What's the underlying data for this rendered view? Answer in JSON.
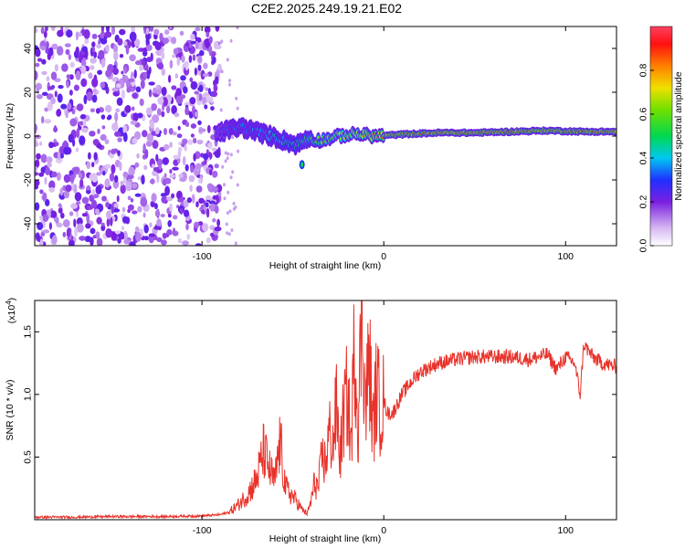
{
  "title": "C2E2.2025.249.19.21.E02",
  "colorbar": {
    "label": "Normalized spectral amplitude",
    "ticks": [
      "0.0",
      "0.2",
      "0.4",
      "0.6",
      "0.8"
    ],
    "tick_values": [
      0.0,
      0.2,
      0.4,
      0.6,
      0.8
    ],
    "range": [
      0,
      1
    ]
  },
  "chart_data": [
    {
      "type": "heatmap",
      "name": "spectrogram",
      "xlabel": "Height of straight line (km)",
      "ylabel": "Frequency (Hz)",
      "xlim": [
        -192,
        128
      ],
      "ylim": [
        -50,
        50
      ],
      "x_ticks": [
        -100,
        0,
        100
      ],
      "x_tick_labels": [
        "-100",
        "0",
        "100"
      ],
      "y_ticks": [
        -40,
        -20,
        0,
        20,
        40
      ],
      "y_tick_labels": [
        "-40",
        "-20",
        "0",
        "20",
        "40"
      ],
      "noise_region_x": [
        -192,
        -90
      ],
      "signal_track": {
        "x": [
          -92,
          -85,
          -78,
          -70,
          -62,
          -55,
          -48,
          -42,
          -35,
          -25,
          -15,
          -5,
          5,
          15,
          30,
          50,
          70,
          90,
          110,
          128
        ],
        "freq": [
          1,
          3,
          4,
          2,
          0,
          -2,
          -4,
          -1,
          -2,
          0,
          1,
          0,
          0.5,
          1,
          1.5,
          1.5,
          2,
          2.5,
          2,
          2
        ],
        "amplitude": [
          0.3,
          0.35,
          0.4,
          0.4,
          0.45,
          0.5,
          0.55,
          0.6,
          0.65,
          0.7,
          0.8,
          0.85,
          0.9,
          0.9,
          0.95,
          0.95,
          0.95,
          0.9,
          0.95,
          0.95
        ]
      }
    },
    {
      "type": "line",
      "name": "snr",
      "xlabel": "Height of straight line (km)",
      "ylabel": "SNR (10 * v/v)",
      "y_scale_note": "(x10",
      "y_scale_exp": "4",
      "xlim": [
        -192,
        128
      ],
      "ylim": [
        0,
        1.75
      ],
      "x_ticks": [
        -100,
        0,
        100
      ],
      "x_tick_labels": [
        "-100",
        "0",
        "100"
      ],
      "y_ticks": [
        0.5,
        1.0,
        1.5
      ],
      "y_tick_labels": [
        "0.5",
        "1.0",
        "1.5"
      ],
      "color": "#e8322a",
      "series": [
        {
          "name": "SNR",
          "x": [
            -192,
            -170,
            -150,
            -120,
            -100,
            -90,
            -85,
            -80,
            -75,
            -70,
            -66,
            -63,
            -60,
            -57,
            -54,
            -51,
            -48,
            -45,
            -42,
            -40,
            -38,
            -36,
            -34,
            -32,
            -30,
            -28,
            -26,
            -24,
            -22,
            -20,
            -18,
            -16,
            -14,
            -12,
            -10,
            -8,
            -6,
            -4,
            -2,
            0,
            2,
            5,
            10,
            15,
            20,
            30,
            40,
            50,
            60,
            70,
            80,
            90,
            95,
            100,
            105,
            108,
            110,
            115,
            120,
            128
          ],
          "values": [
            0.02,
            0.02,
            0.025,
            0.025,
            0.03,
            0.04,
            0.06,
            0.12,
            0.2,
            0.32,
            0.55,
            0.4,
            0.3,
            0.62,
            0.25,
            0.2,
            0.15,
            0.08,
            0.05,
            0.15,
            0.3,
            0.25,
            0.5,
            0.45,
            0.7,
            0.6,
            0.9,
            0.5,
            0.85,
            1.0,
            0.6,
            1.45,
            0.75,
            1.75,
            0.9,
            1.3,
            0.7,
            1.05,
            0.9,
            0.95,
            0.85,
            0.85,
            1.0,
            1.1,
            1.18,
            1.25,
            1.28,
            1.3,
            1.3,
            1.3,
            1.28,
            1.32,
            1.2,
            1.3,
            1.25,
            1.0,
            1.4,
            1.3,
            1.25,
            1.22
          ]
        }
      ]
    }
  ]
}
